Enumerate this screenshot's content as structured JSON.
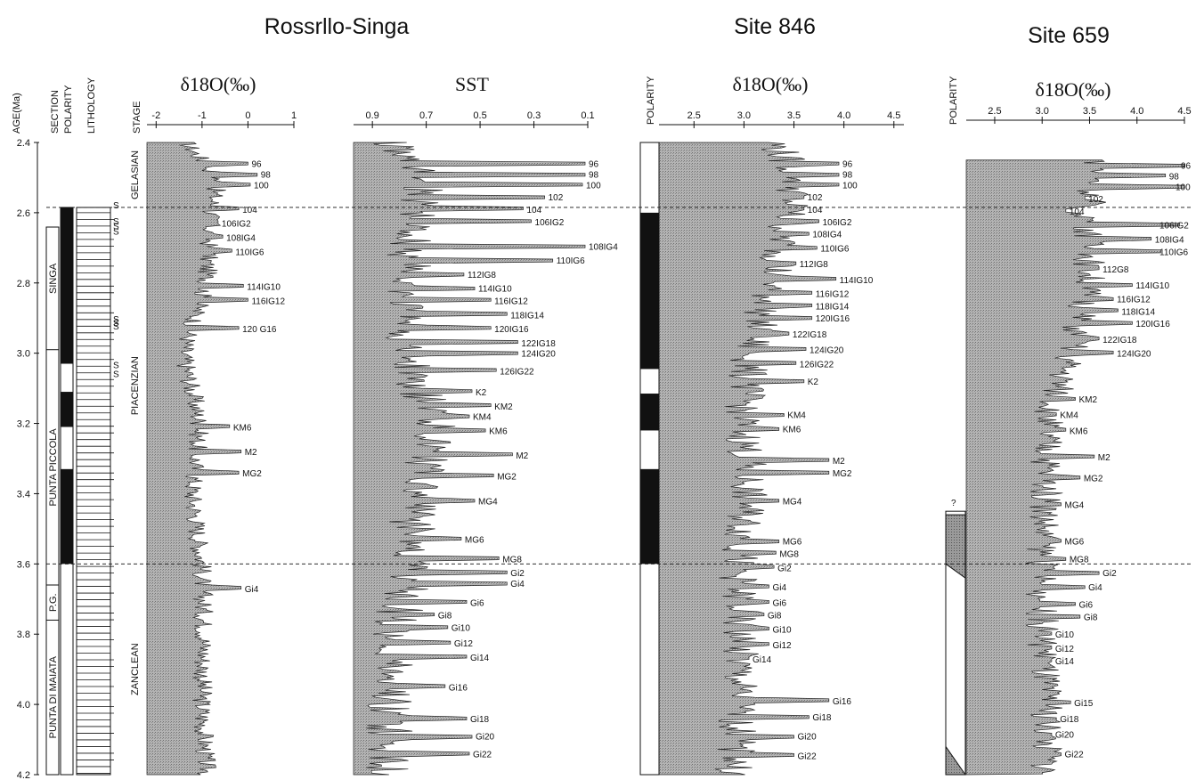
{
  "figure": {
    "titles": [
      "Rossrllo-Singa",
      "Site 846",
      "Site 659"
    ],
    "column_headers": {
      "age": "AGE(Ma)",
      "section": "SECTION",
      "polarity": "POLARITY",
      "lithology": "LITHOLOGY",
      "stage": "STAGE"
    },
    "sapropel_mark": "S"
  },
  "chart_data": {
    "type": "area",
    "shared_y": {
      "label": "AGE(Ma)",
      "ticks": [
        "2.4",
        "2.6",
        "2.8",
        "3.0",
        "3.2",
        "3.4",
        "3.6",
        "3.8",
        "4.0",
        "4.2"
      ],
      "range": [
        2.4,
        4.2
      ],
      "reversed": true
    },
    "boundaries_ma": [
      2.585,
      3.6
    ],
    "stages": [
      {
        "name": "GELASIAN",
        "from": 2.4,
        "to": 2.585
      },
      {
        "name": "PIACENZIAN",
        "from": 2.585,
        "to": 3.6
      },
      {
        "name": "ZANCLEAN",
        "from": 3.6,
        "to": 4.2
      }
    ],
    "sections": [
      {
        "name": "SINGA",
        "from": 2.585,
        "to": 2.99
      },
      {
        "name": "PUNTA PICCOLA",
        "from": 2.99,
        "to": 3.66
      },
      {
        "name": "P.G.",
        "from": 3.66,
        "to": 3.76
      },
      {
        "name": "PUNTA DI MAIATA",
        "from": 3.76,
        "to": 4.2
      }
    ],
    "polarity": {
      "rossello_normal": [
        [
          2.585,
          3.03
        ],
        [
          3.11,
          3.21
        ],
        [
          3.33,
          3.6
        ]
      ],
      "site846_normal": [
        [
          2.6,
          3.045
        ],
        [
          3.115,
          3.22
        ],
        [
          3.33,
          3.6
        ]
      ],
      "site659_marks": [
        {
          "age": 3.44,
          "text": "?"
        }
      ]
    },
    "panels": [
      {
        "name": "Rossrllo-Singa",
        "quantity": "δ18O(‰)",
        "xlim": [
          -2.2,
          1.0
        ],
        "ticks": [
          "-2",
          "-1",
          "0",
          "1"
        ],
        "tick_values": [
          -2,
          -1,
          0,
          1
        ],
        "series": [
          {
            "shape": [
              [
                2.4,
                -1.35
              ],
              [
                2.5,
                -0.65
              ],
              [
                2.6,
                -0.8
              ],
              [
                2.8,
                -0.9
              ],
              [
                3.0,
                -1.4
              ],
              [
                3.2,
                -1.05
              ],
              [
                3.4,
                -1.2
              ],
              [
                3.6,
                -1.0
              ],
              [
                3.8,
                -0.95
              ],
              [
                4.0,
                -1.0
              ],
              [
                4.2,
                -0.9
              ]
            ],
            "amplitude": 0.45
          }
        ],
        "events": [
          {
            "label": "96",
            "age": 2.46,
            "value": 0.0
          },
          {
            "label": "98",
            "age": 2.49,
            "value": 0.2
          },
          {
            "label": "100",
            "age": 2.52,
            "value": 0.05
          },
          {
            "label": "104",
            "age": 2.59,
            "value": -0.2
          },
          {
            "label": "106IG2",
            "age": 2.63,
            "value": -0.65
          },
          {
            "label": "108IG4",
            "age": 2.67,
            "value": -0.55
          },
          {
            "label": "110IG6",
            "age": 2.71,
            "value": -0.35
          },
          {
            "label": "114IG10",
            "age": 2.81,
            "value": -0.1
          },
          {
            "label": "116IG12",
            "age": 2.85,
            "value": 0.0
          },
          {
            "label": "120 G16",
            "age": 2.93,
            "value": -0.2
          },
          {
            "label": "KM6",
            "age": 3.21,
            "value": -0.4
          },
          {
            "label": "M2",
            "age": 3.28,
            "value": -0.15
          },
          {
            "label": "MG2",
            "age": 3.34,
            "value": -0.2
          },
          {
            "label": "Gi4",
            "age": 3.67,
            "value": -0.15
          }
        ]
      },
      {
        "name": "SST",
        "quantity": "SST",
        "xlim": [
          0.97,
          0.1
        ],
        "ticks": [
          "0.9",
          "0.7",
          "0.5",
          "0.3",
          "0.1"
        ],
        "tick_values": [
          0.9,
          0.7,
          0.5,
          0.3,
          0.1
        ],
        "series": [
          {
            "shape": [
              [
                2.4,
                0.84
              ],
              [
                2.5,
                0.72
              ],
              [
                2.6,
                0.74
              ],
              [
                2.8,
                0.78
              ],
              [
                3.0,
                0.78
              ],
              [
                3.2,
                0.66
              ],
              [
                3.4,
                0.74
              ],
              [
                3.6,
                0.76
              ],
              [
                3.8,
                0.82
              ],
              [
                4.0,
                0.84
              ],
              [
                4.2,
                0.84
              ]
            ],
            "amplitude": 0.18
          }
        ],
        "events": [
          {
            "label": "96",
            "age": 2.46,
            "value": 0.11
          },
          {
            "label": "98",
            "age": 2.49,
            "value": 0.11
          },
          {
            "label": "100",
            "age": 2.52,
            "value": 0.12
          },
          {
            "label": "102",
            "age": 2.555,
            "value": 0.26
          },
          {
            "label": "104",
            "age": 2.59,
            "value": 0.34
          },
          {
            "label": "106IG2",
            "age": 2.625,
            "value": 0.31
          },
          {
            "label": "108IG4",
            "age": 2.695,
            "value": 0.11
          },
          {
            "label": "110IG6",
            "age": 2.735,
            "value": 0.23
          },
          {
            "label": "112IG8",
            "age": 2.775,
            "value": 0.56
          },
          {
            "label": "114IG10",
            "age": 2.815,
            "value": 0.52
          },
          {
            "label": "116IG12",
            "age": 2.85,
            "value": 0.46
          },
          {
            "label": "118IG14",
            "age": 2.89,
            "value": 0.4
          },
          {
            "label": "120IG16",
            "age": 2.93,
            "value": 0.46
          },
          {
            "label": "122IG18",
            "age": 2.97,
            "value": 0.36
          },
          {
            "label": "124IG20",
            "age": 3.0,
            "value": 0.36
          },
          {
            "label": "126IG22",
            "age": 3.05,
            "value": 0.44
          },
          {
            "label": "K2",
            "age": 3.11,
            "value": 0.53
          },
          {
            "label": "KM2",
            "age": 3.15,
            "value": 0.46
          },
          {
            "label": "KM4",
            "age": 3.18,
            "value": 0.54
          },
          {
            "label": "KM6",
            "age": 3.22,
            "value": 0.48
          },
          {
            "label": "M2",
            "age": 3.29,
            "value": 0.38
          },
          {
            "label": "MG2",
            "age": 3.35,
            "value": 0.45
          },
          {
            "label": "MG4",
            "age": 3.42,
            "value": 0.52
          },
          {
            "label": "MG6",
            "age": 3.53,
            "value": 0.57
          },
          {
            "label": "MG8",
            "age": 3.585,
            "value": 0.43
          },
          {
            "label": "Gi2",
            "age": 3.625,
            "value": 0.4
          },
          {
            "label": "Gi4",
            "age": 3.655,
            "value": 0.4
          },
          {
            "label": "Gi6",
            "age": 3.71,
            "value": 0.55
          },
          {
            "label": "Gi8",
            "age": 3.745,
            "value": 0.67
          },
          {
            "label": "Gi10",
            "age": 3.78,
            "value": 0.62
          },
          {
            "label": "Gi12",
            "age": 3.825,
            "value": 0.61
          },
          {
            "label": "Gi14",
            "age": 3.865,
            "value": 0.55
          },
          {
            "label": "Gi16",
            "age": 3.95,
            "value": 0.63
          },
          {
            "label": "Gi18",
            "age": 4.04,
            "value": 0.55
          },
          {
            "label": "Gi20",
            "age": 4.09,
            "value": 0.53
          },
          {
            "label": "Gi22",
            "age": 4.14,
            "value": 0.54
          }
        ]
      },
      {
        "name": "Site 846",
        "quantity": "δ18O(‰)",
        "xlim": [
          2.15,
          4.6
        ],
        "ticks": [
          "2.5",
          "3.0",
          "3.5",
          "4.0",
          "4.5"
        ],
        "tick_values": [
          2.5,
          3.0,
          3.5,
          4.0,
          4.5
        ],
        "series": [
          {
            "shape": [
              [
                2.4,
                3.3
              ],
              [
                2.5,
                3.55
              ],
              [
                2.6,
                3.45
              ],
              [
                2.8,
                3.3
              ],
              [
                3.0,
                3.05
              ],
              [
                3.2,
                3.0
              ],
              [
                3.4,
                3.05
              ],
              [
                3.6,
                2.95
              ],
              [
                3.8,
                2.95
              ],
              [
                4.0,
                2.95
              ],
              [
                4.2,
                2.9
              ]
            ],
            "amplitude": 0.4
          }
        ],
        "events": [
          {
            "label": "96",
            "age": 2.46,
            "value": 3.95
          },
          {
            "label": "98",
            "age": 2.49,
            "value": 3.95
          },
          {
            "label": "100",
            "age": 2.52,
            "value": 3.95
          },
          {
            "label": "102",
            "age": 2.555,
            "value": 3.6
          },
          {
            "label": "104",
            "age": 2.59,
            "value": 3.6
          },
          {
            "label": "106IG2",
            "age": 2.625,
            "value": 3.75
          },
          {
            "label": "108IG4",
            "age": 2.66,
            "value": 3.65
          },
          {
            "label": "110IG6",
            "age": 2.7,
            "value": 3.73
          },
          {
            "label": "112IG8",
            "age": 2.745,
            "value": 3.52
          },
          {
            "label": "114IG10",
            "age": 2.79,
            "value": 3.92
          },
          {
            "label": "116IG12",
            "age": 2.83,
            "value": 3.68
          },
          {
            "label": "118IG14",
            "age": 2.865,
            "value": 3.68
          },
          {
            "label": "120IG16",
            "age": 2.9,
            "value": 3.68
          },
          {
            "label": "122IG18",
            "age": 2.945,
            "value": 3.45
          },
          {
            "label": "124IG20",
            "age": 2.99,
            "value": 3.62
          },
          {
            "label": "126IG22",
            "age": 3.03,
            "value": 3.52
          },
          {
            "label": "K2",
            "age": 3.08,
            "value": 3.6
          },
          {
            "label": "KM4",
            "age": 3.175,
            "value": 3.4
          },
          {
            "label": "KM6",
            "age": 3.215,
            "value": 3.35
          },
          {
            "label": "M2",
            "age": 3.305,
            "value": 3.85
          },
          {
            "label": "MG2",
            "age": 3.34,
            "value": 3.85
          },
          {
            "label": "MG4",
            "age": 3.42,
            "value": 3.35
          },
          {
            "label": "MG6",
            "age": 3.535,
            "value": 3.35
          },
          {
            "label": "MG8",
            "age": 3.57,
            "value": 3.32
          },
          {
            "label": "Gi2",
            "age": 3.61,
            "value": 3.3
          },
          {
            "label": "Gi4",
            "age": 3.665,
            "value": 3.25
          },
          {
            "label": "Gi6",
            "age": 3.71,
            "value": 3.25
          },
          {
            "label": "Gi8",
            "age": 3.745,
            "value": 3.2
          },
          {
            "label": "Gi10",
            "age": 3.785,
            "value": 3.25
          },
          {
            "label": "Gi12",
            "age": 3.83,
            "value": 3.25
          },
          {
            "label": "Gi14",
            "age": 3.87,
            "value": 3.05
          },
          {
            "label": "Gi16",
            "age": 3.99,
            "value": 3.85
          },
          {
            "label": "Gi18",
            "age": 4.035,
            "value": 3.65
          },
          {
            "label": "Gi20",
            "age": 4.09,
            "value": 3.5
          },
          {
            "label": "Gi22",
            "age": 4.145,
            "value": 3.5
          }
        ]
      },
      {
        "name": "Site 659",
        "quantity": "δ18O(‰)",
        "xlim": [
          2.2,
          4.5
        ],
        "ticks": [
          "2.5",
          "3.0",
          "3.5",
          "4.0",
          "4.5"
        ],
        "tick_values": [
          2.5,
          3.0,
          3.5,
          4.0,
          4.5
        ],
        "series": [
          {
            "shape": [
              [
                2.45,
                3.6
              ],
              [
                2.6,
                3.5
              ],
              [
                2.8,
                3.5
              ],
              [
                3.0,
                3.3
              ],
              [
                3.2,
                3.05
              ],
              [
                3.4,
                3.05
              ],
              [
                3.6,
                3.0
              ],
              [
                3.8,
                3.0
              ],
              [
                4.0,
                3.05
              ],
              [
                4.2,
                3.05
              ]
            ],
            "amplitude": 0.35
          }
        ],
        "events": [
          {
            "label": "96",
            "age": 2.465,
            "value": 4.5
          },
          {
            "label": "98",
            "age": 2.495,
            "value": 4.3
          },
          {
            "label": "100",
            "age": 2.525,
            "value": 4.5
          },
          {
            "label": "102",
            "age": 2.56,
            "value": 3.45
          },
          {
            "label": "104",
            "age": 2.595,
            "value": 3.25
          },
          {
            "label": "106IG2",
            "age": 2.635,
            "value": 4.45
          },
          {
            "label": "108IG4",
            "age": 2.675,
            "value": 4.15
          },
          {
            "label": "110IG6",
            "age": 2.71,
            "value": 4.25
          },
          {
            "label": "112G8",
            "age": 2.76,
            "value": 3.6
          },
          {
            "label": "114IG10",
            "age": 2.805,
            "value": 3.95
          },
          {
            "label": "116IG12",
            "age": 2.845,
            "value": 3.75
          },
          {
            "label": "118IG14",
            "age": 2.88,
            "value": 3.8
          },
          {
            "label": "120IG16",
            "age": 2.915,
            "value": 3.95
          },
          {
            "label": "122IG18",
            "age": 2.96,
            "value": 3.6
          },
          {
            "label": "124IG20",
            "age": 3.0,
            "value": 3.75
          },
          {
            "label": "KM2",
            "age": 3.13,
            "value": 3.35
          },
          {
            "label": "KM4",
            "age": 3.175,
            "value": 3.15
          },
          {
            "label": "KM6",
            "age": 3.22,
            "value": 3.25
          },
          {
            "label": "M2",
            "age": 3.295,
            "value": 3.55
          },
          {
            "label": "MG2",
            "age": 3.355,
            "value": 3.4
          },
          {
            "label": "MG4",
            "age": 3.43,
            "value": 3.2
          },
          {
            "label": "MG6",
            "age": 3.535,
            "value": 3.2
          },
          {
            "label": "MG8",
            "age": 3.585,
            "value": 3.25
          },
          {
            "label": "Gi2",
            "age": 3.625,
            "value": 3.6
          },
          {
            "label": "Gi4",
            "age": 3.665,
            "value": 3.45
          },
          {
            "label": "Gi6",
            "age": 3.715,
            "value": 3.35
          },
          {
            "label": "Gi8",
            "age": 3.75,
            "value": 3.4
          },
          {
            "label": "Gi10",
            "age": 3.8,
            "value": 3.1
          },
          {
            "label": "Gi12",
            "age": 3.84,
            "value": 3.1
          },
          {
            "label": "Gi14",
            "age": 3.875,
            "value": 3.1
          },
          {
            "label": "Gi15",
            "age": 3.995,
            "value": 3.3
          },
          {
            "label": "Gi18",
            "age": 4.04,
            "value": 3.15
          },
          {
            "label": "Gi20",
            "age": 4.085,
            "value": 3.1
          },
          {
            "label": "Gi22",
            "age": 4.14,
            "value": 3.2
          }
        ]
      }
    ]
  }
}
